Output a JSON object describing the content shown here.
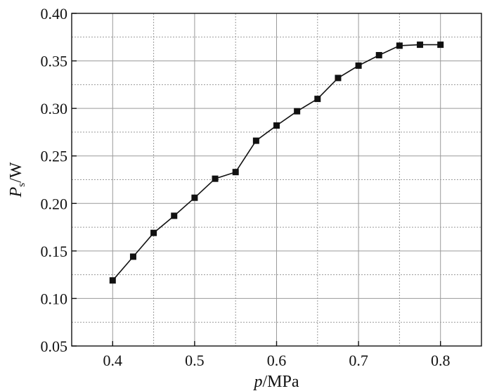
{
  "chart_data": {
    "type": "line",
    "title": "",
    "xlabel": {
      "italic": "p",
      "rest": "/MPa"
    },
    "ylabel": {
      "italic": "P",
      "sub": "s",
      "rest": "/W"
    },
    "xlim": [
      0.35,
      0.85
    ],
    "ylim": [
      0.05,
      0.4
    ],
    "x_ticks": [
      "0.4",
      "0.5",
      "0.6",
      "0.7",
      "0.8"
    ],
    "x_tick_values": [
      0.4,
      0.5,
      0.6,
      0.7,
      0.8
    ],
    "y_ticks": [
      "0.05",
      "0.10",
      "0.15",
      "0.20",
      "0.25",
      "0.30",
      "0.35",
      "0.40"
    ],
    "y_tick_values": [
      0.05,
      0.1,
      0.15,
      0.2,
      0.25,
      0.3,
      0.35,
      0.4
    ],
    "x_minor_grid": [
      0.45,
      0.55,
      0.65,
      0.75
    ],
    "y_minor_grid": [
      0.075,
      0.125,
      0.175,
      0.225,
      0.275,
      0.325,
      0.375
    ],
    "grid": true,
    "marker": "square",
    "series": [
      {
        "x": [
          0.4,
          0.425,
          0.45,
          0.475,
          0.5,
          0.525,
          0.55,
          0.575,
          0.6,
          0.625,
          0.65,
          0.675,
          0.7,
          0.725,
          0.75,
          0.775,
          0.8
        ],
        "values": [
          0.119,
          0.144,
          0.169,
          0.187,
          0.206,
          0.226,
          0.233,
          0.266,
          0.282,
          0.297,
          0.31,
          0.332,
          0.345,
          0.356,
          0.366,
          0.367,
          0.367
        ]
      }
    ]
  }
}
